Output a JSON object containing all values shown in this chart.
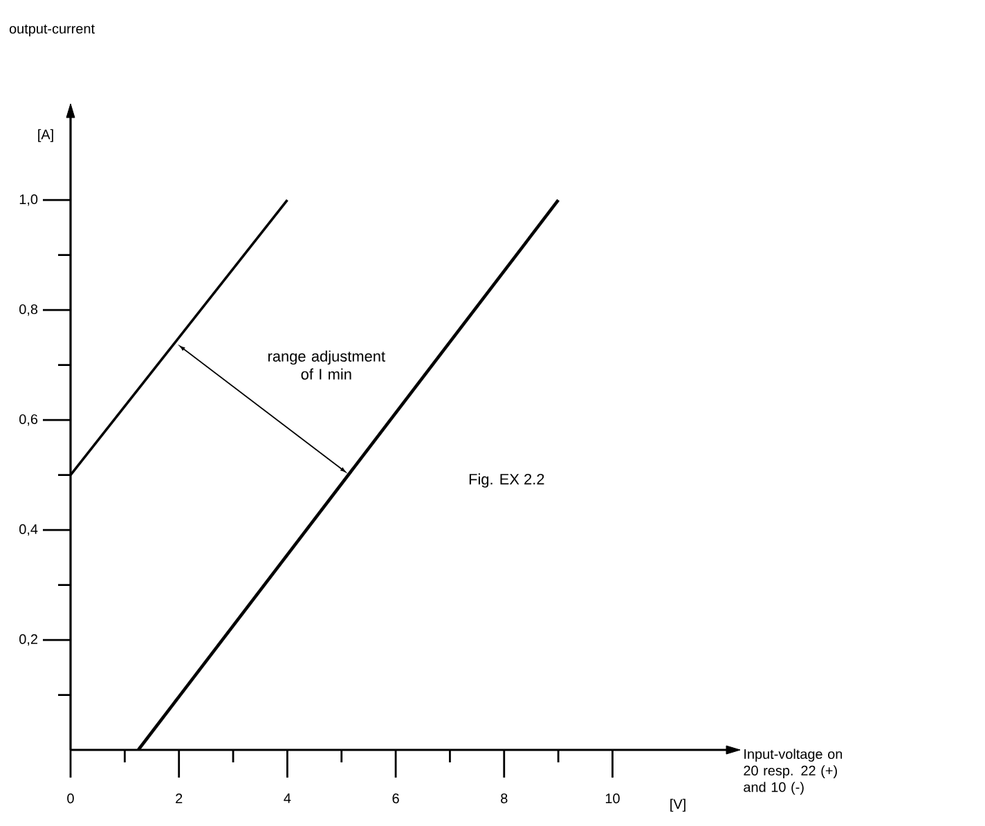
{
  "chart_data": {
    "type": "line",
    "xlabel": "Input-voltage on 20 resp. 22 (+) and 10 (-)",
    "series": [
      {
        "color": "#000000",
        "x": [
          0,
          4
        ],
        "values": [
          0.5,
          1.0
        ]
      },
      {
        "color": "#000000",
        "x": [
          1.25,
          9.0
        ],
        "values": [
          0,
          1.0
        ]
      }
    ],
    "xlim": [
      0,
      12.1
    ],
    "ylim": [
      0,
      1.15
    ],
    "xticks": [
      0,
      {
        "value": 1,
        "label": null
      },
      2,
      {
        "value": 3,
        "label": null
      },
      4,
      {
        "value": 5,
        "label": null
      },
      6,
      {
        "value": 7,
        "label": null
      },
      8,
      {
        "value": 9,
        "label": null
      },
      10
    ],
    "yticks": [
      {
        "value": 0.1,
        "label": null
      },
      {
        "value": 0.2,
        "label": "0,2"
      },
      {
        "value": 0.3,
        "label": null
      },
      {
        "value": 0.4,
        "label": "0,4"
      },
      {
        "value": 0.5,
        "label": null
      },
      {
        "value": 0.6,
        "label": "0,6"
      },
      {
        "value": 0.7,
        "label": null
      },
      {
        "value": 0.8,
        "label": "0,8"
      },
      {
        "value": 0.9,
        "label": null
      },
      {
        "value": 1.0,
        "label": "1,0"
      }
    ],
    "annotations": [
      "output-current",
      "[A]",
      "[V]",
      "range adjustment of I min",
      "Fig. EX 2.2"
    ],
    "grid": false,
    "marker": "none",
    "line_style": "solid"
  }
}
